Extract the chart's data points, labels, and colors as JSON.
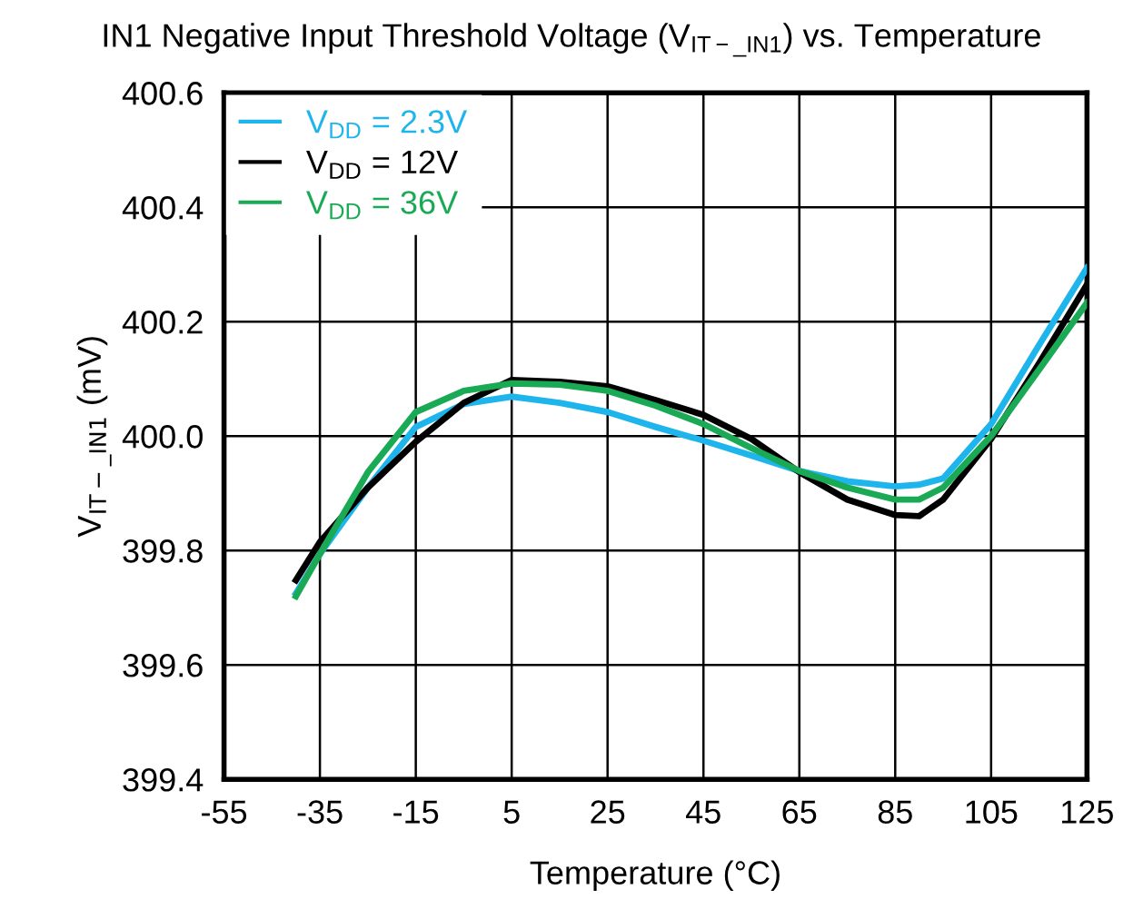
{
  "chart_data": {
    "type": "line",
    "title": "IN1 Negative Input Threshold Voltage (V$_{IT−_IN1}$) vs. Temperature",
    "xlabel": "Temperature (°C)",
    "ylabel": "V$_{IT−_IN1}$ (mV)",
    "x": [
      -40,
      -35,
      -25,
      -15,
      -5,
      5,
      15,
      25,
      35,
      45,
      55,
      65,
      75,
      85,
      90,
      95,
      105,
      115,
      125
    ],
    "series": [
      {
        "name": "V$_{DD}$ = 2.3V",
        "color": "#1eb4ec",
        "values": [
          399.725,
          399.794,
          399.91,
          400.016,
          400.056,
          400.069,
          400.058,
          400.042,
          400.016,
          399.992,
          399.966,
          399.939,
          399.921,
          399.912,
          399.915,
          399.926,
          400.021,
          400.159,
          400.294
        ]
      },
      {
        "name": "V$_{DD}$ = 12V",
        "color": "#000000",
        "values": [
          399.748,
          399.815,
          399.91,
          399.99,
          400.058,
          400.098,
          400.095,
          400.087,
          400.063,
          400.037,
          399.995,
          399.937,
          399.889,
          399.862,
          399.86,
          399.889,
          399.995,
          400.127,
          400.265
        ]
      },
      {
        "name": "V$_{DD}$ = 36V",
        "color": "#1aaa55",
        "values": [
          399.72,
          399.794,
          399.937,
          400.042,
          400.079,
          400.092,
          400.09,
          400.079,
          400.053,
          400.021,
          399.979,
          399.939,
          399.91,
          399.889,
          399.889,
          399.91,
          400.0,
          400.116,
          400.233
        ]
      }
    ],
    "xlim": [
      -55,
      125
    ],
    "xticks": [
      -55,
      -35,
      -15,
      5,
      25,
      45,
      65,
      85,
      105,
      125
    ],
    "ylim": [
      399.4,
      400.6
    ],
    "yticks": [
      {
        "value": 399.4,
        "label": "399.4"
      },
      {
        "value": 399.6,
        "label": "399.6"
      },
      {
        "value": 399.8,
        "label": "399.8"
      },
      {
        "value": 400.0,
        "label": "400.0"
      },
      {
        "value": 400.2,
        "label": "400.2"
      },
      {
        "value": 400.4,
        "label": "400.4"
      },
      {
        "value": 400.6,
        "label": "400.6"
      }
    ],
    "grid": true,
    "legend": "top left"
  }
}
